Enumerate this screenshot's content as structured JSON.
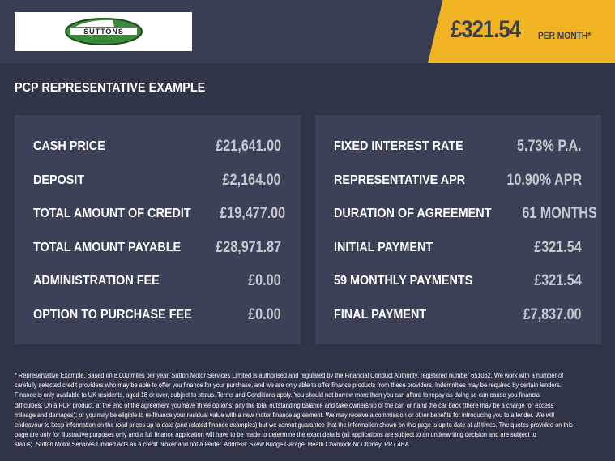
{
  "header": {
    "logo_text": "SUTTONS",
    "price": "£321.54",
    "per_month": "PER MONTH*",
    "brand_green": "#3a8a3a",
    "accent": "#f0b323"
  },
  "section_title": "PCP REPRESENTATIVE EXAMPLE",
  "left_panel": [
    {
      "label": "CASH PRICE",
      "value": "£21,641.00"
    },
    {
      "label": "DEPOSIT",
      "value": "£2,164.00"
    },
    {
      "label": "TOTAL AMOUNT OF CREDIT",
      "value": "£19,477.00"
    },
    {
      "label": "TOTAL AMOUNT PAYABLE",
      "value": "£28,971.87"
    },
    {
      "label": "ADMINISTRATION FEE",
      "value": "£0.00"
    },
    {
      "label": "OPTION TO PURCHASE FEE",
      "value": "£0.00"
    }
  ],
  "right_panel": [
    {
      "label": "FIXED INTEREST RATE",
      "value": "5.73% P.A."
    },
    {
      "label": "REPRESENTATIVE APR",
      "value": "10.90% APR"
    },
    {
      "label": "DURATION OF AGREEMENT",
      "value": "61 MONTHS"
    },
    {
      "label": "INITIAL PAYMENT",
      "value": "£321.54"
    },
    {
      "label": "59 MONTHLY PAYMENTS",
      "value": "£321.54"
    },
    {
      "label": "FINAL PAYMENT",
      "value": "£7,837.00"
    }
  ],
  "footer_lines": [
    "* Representative Example. Based on 8,000 miles per year. Sutton Motor Services Limited is authorised and regulated by the Financial Conduct Authority, registered number 651062. We work with a number of",
    "carefully selected credit providers who may be able to offer you finance for your purchase, and we are only able to offer finance products from these providers. Indemnities may be required by certain lenders.",
    "Finance is only available to UK residents, aged 18 or over, subject to status. Terms and Conditions apply. You should not borrow more than you can afford to repay as doing so can cause you financial",
    "difficulties. On a PCP product, at the end of the agreement you have three options: pay the total outstanding balance and take ownership of the car; or hand the car back (there may be a charge for excess",
    "mileage and damages); or you may be eligible to re-finance your residual value with a new motor finance agreement. We may receive a commission or other benefits for introducing you to a lender. We will",
    "endeavour to keep information on the road prices up to date (and related finance examples) but we cannot guarantee that the information shown on this page is up to date at all times. The quotes provided on this",
    "page are only for illustrative purposes only and a full finance application will have to be made to determine the exact details (all applications are subject to an underwriting decision and are subject to",
    "status). Sutton Motor Services Limited acts as a credit broker and not a lender. Address: Skew Bridge Garage, Heath Charnock Nr Chorley, PR7 4BA"
  ]
}
